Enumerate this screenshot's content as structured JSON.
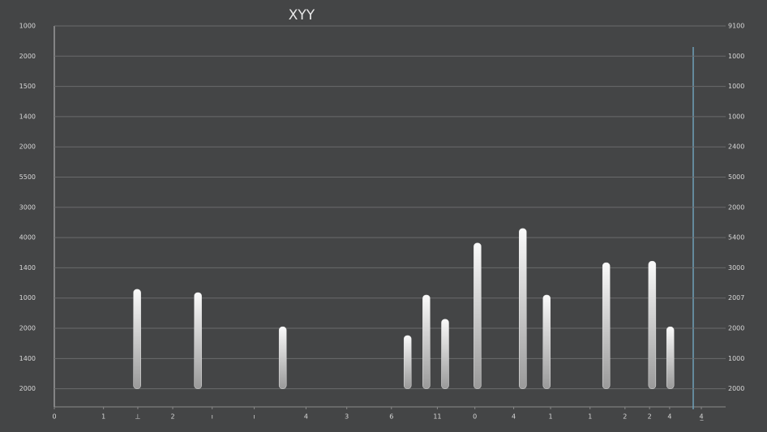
{
  "chart_data": {
    "type": "bar",
    "title": "XYY",
    "x": [
      12.8,
      22.2,
      35.3,
      54.6,
      57.5,
      60.4,
      65.4,
      72.4,
      76.1,
      85.3,
      92.4,
      95.2
    ],
    "values": [
      3.29,
      3.18,
      2.05,
      1.76,
      3.1,
      2.3,
      4.82,
      5.3,
      3.1,
      4.17,
      4.22,
      2.05
    ],
    "color": "#e6e6e6",
    "xlim": [
      0,
      100
    ],
    "xticks": [
      {
        "value": 0,
        "label": "0"
      },
      {
        "value": 7.6,
        "label": "1"
      },
      {
        "value": 12.9,
        "label": "⊥"
      },
      {
        "value": 18.3,
        "label": "2"
      },
      {
        "value": 24.4,
        "label": "ı"
      },
      {
        "value": 30.9,
        "label": "ı"
      },
      {
        "value": 38.9,
        "label": "4"
      },
      {
        "value": 45.2,
        "label": "3"
      },
      {
        "value": 52.1,
        "label": "6"
      },
      {
        "value": 59.2,
        "label": "11"
      },
      {
        "value": 65,
        "label": "0"
      },
      {
        "value": 71,
        "label": "4"
      },
      {
        "value": 76.7,
        "label": "1"
      },
      {
        "value": 82.8,
        "label": "1"
      },
      {
        "value": 88.2,
        "label": "2"
      },
      {
        "value": 92,
        "label": "2"
      },
      {
        "value": 95.1,
        "label": "4"
      },
      {
        "value": 100,
        "label": "4̲"
      }
    ],
    "ylim": [
      -0.6,
      12
    ],
    "yticks": [
      {
        "value": 0,
        "label": "2000"
      },
      {
        "value": 1,
        "label": "1400"
      },
      {
        "value": 2,
        "label": "2000"
      },
      {
        "value": 3,
        "label": "1000"
      },
      {
        "value": 4,
        "label": "1400"
      },
      {
        "value": 5,
        "label": "4000"
      },
      {
        "value": 6,
        "label": "3000"
      },
      {
        "value": 7,
        "label": "5500"
      },
      {
        "value": 8,
        "label": "2000"
      },
      {
        "value": 9,
        "label": "1400"
      },
      {
        "value": 10,
        "label": "1500"
      },
      {
        "value": 11,
        "label": "2000"
      },
      {
        "value": 12,
        "label": "1000"
      }
    ],
    "y2lim": [
      -0.6,
      12
    ],
    "y2ticks": [
      {
        "value": 0,
        "label": "2000"
      },
      {
        "value": 1,
        "label": "1000"
      },
      {
        "value": 2,
        "label": "2000"
      },
      {
        "value": 3,
        "label": "2007"
      },
      {
        "value": 4,
        "label": "3000"
      },
      {
        "value": 5,
        "label": "5400"
      },
      {
        "value": 6,
        "label": "2000"
      },
      {
        "value": 7,
        "label": "5000"
      },
      {
        "value": 8,
        "label": "2400"
      },
      {
        "value": 9,
        "label": "1000"
      },
      {
        "value": 10,
        "label": "1000"
      },
      {
        "value": 11,
        "label": "1000"
      },
      {
        "value": 12,
        "label": "9100"
      }
    ],
    "grid": true
  }
}
